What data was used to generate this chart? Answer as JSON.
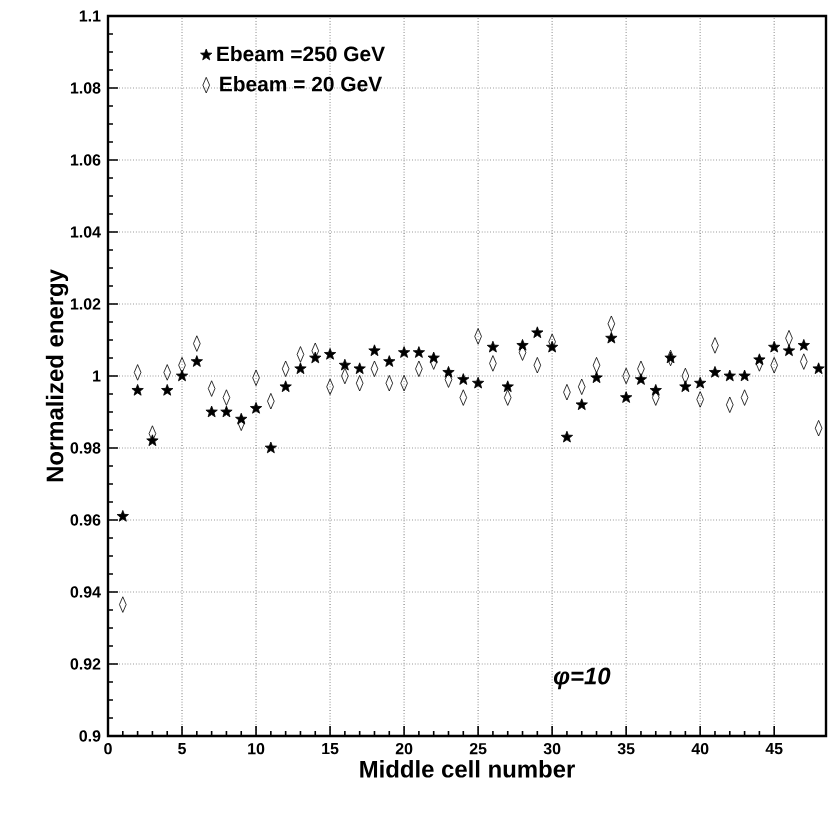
{
  "chart_data": {
    "type": "scatter",
    "xlabel": "Middle cell number",
    "ylabel": "Normalized energy",
    "x": [
      1,
      2,
      3,
      4,
      5,
      6,
      7,
      8,
      9,
      10,
      11,
      12,
      13,
      14,
      15,
      16,
      17,
      18,
      19,
      20,
      21,
      22,
      23,
      24,
      25,
      26,
      27,
      28,
      29,
      30,
      31,
      32,
      33,
      34,
      35,
      36,
      37,
      38,
      39,
      40,
      41,
      42,
      43,
      44,
      45,
      46,
      47,
      48
    ],
    "series": [
      {
        "name": "Ebeam =250 GeV",
        "color": "#000000",
        "marker": "star",
        "values": [
          0.961,
          0.996,
          0.982,
          0.996,
          1.0,
          1.004,
          0.99,
          0.99,
          0.988,
          0.991,
          0.98,
          0.997,
          1.002,
          1.005,
          1.006,
          1.003,
          1.002,
          1.007,
          1.004,
          1.0065,
          1.0065,
          1.005,
          1.001,
          0.999,
          0.998,
          1.008,
          0.997,
          1.0085,
          1.012,
          1.008,
          0.983,
          0.992,
          0.9995,
          1.0105,
          0.994,
          0.999,
          0.996,
          1.005,
          0.997,
          0.998,
          1.001,
          1.0,
          1.0,
          1.0045,
          1.008,
          1.007,
          1.0085,
          1.002
        ]
      },
      {
        "name": "Ebeam = 20 GeV",
        "color": "#000000",
        "marker": "diamond",
        "values": [
          0.9365,
          1.001,
          0.984,
          1.001,
          1.003,
          1.009,
          0.9965,
          0.994,
          0.987,
          0.9995,
          0.993,
          1.002,
          1.006,
          1.007,
          0.997,
          1.0,
          0.998,
          1.002,
          0.998,
          0.998,
          1.002,
          1.004,
          0.999,
          0.994,
          1.011,
          1.0035,
          0.994,
          1.0065,
          1.003,
          1.0095,
          0.9955,
          0.997,
          1.003,
          1.0145,
          1.0,
          1.002,
          0.994,
          1.005,
          1.0,
          0.9935,
          1.0085,
          0.992,
          0.994,
          1.0035,
          1.003,
          1.0105,
          1.004,
          0.9855
        ]
      }
    ],
    "xlim": [
      0,
      48.5
    ],
    "xticks": [
      0,
      5,
      10,
      15,
      20,
      25,
      30,
      35,
      40,
      45
    ],
    "ylim": [
      0.9,
      1.1
    ],
    "yticks": [
      0.9,
      0.92,
      0.94,
      0.96,
      0.98,
      1,
      1.02,
      1.04,
      1.06,
      1.08,
      1.1
    ],
    "grid": true,
    "legend": "top left",
    "annotations": [
      "φ=10"
    ]
  }
}
